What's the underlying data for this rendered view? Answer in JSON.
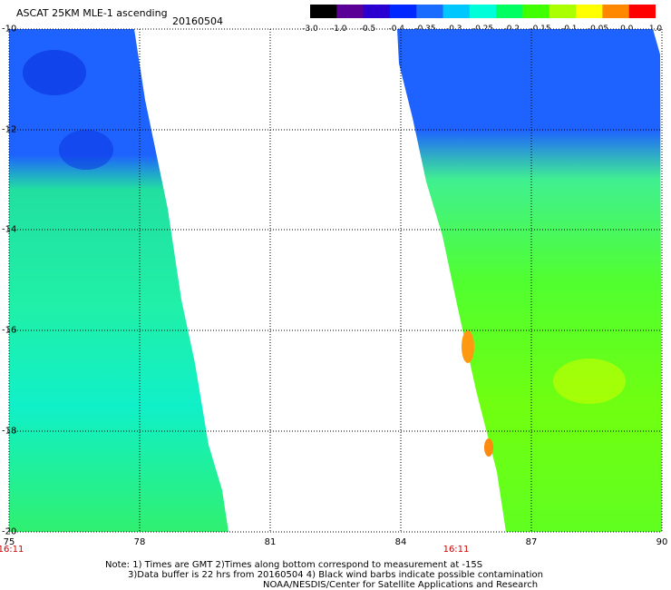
{
  "header": {
    "title": "ASCAT 25KM MLE-1 ascending",
    "date": "20160504"
  },
  "colorbar": {
    "labels": [
      "-3.0",
      "-1.0",
      "-0.5",
      "-0.4",
      "-0.35",
      "-0.3",
      "-0.25",
      "-0.2",
      "-0.15",
      "-0.1",
      "-0.05",
      "0.0",
      "1.0"
    ],
    "colors": [
      "#000000",
      "#5a0096",
      "#2a00d0",
      "#0028ff",
      "#1a6cff",
      "#00c8ff",
      "#00ffd8",
      "#00ff60",
      "#40ff00",
      "#aaff00",
      "#ffff00",
      "#ff8800",
      "#ff0000"
    ]
  },
  "axes": {
    "lat_labels": [
      "-10",
      "-12",
      "-14",
      "-16",
      "-18",
      "-20"
    ],
    "lon_labels": [
      "75",
      "78",
      "81",
      "84",
      "87",
      "90"
    ],
    "time_labels": [
      "16:11",
      "16:11"
    ]
  },
  "notes": {
    "line1": "Note: 1) Times are GMT 2)Times along bottom correspond to measurement at -15S",
    "line2": "3)Data buffer is 22 hrs from 20160504 4) Black wind barbs indicate possible contamination",
    "line3": "NOAA/NESDIS/Center for Satellite Applications and Research"
  }
}
